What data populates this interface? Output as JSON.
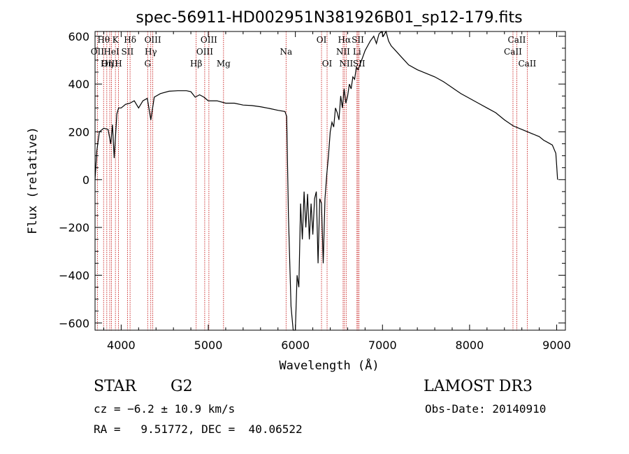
{
  "chart_data": {
    "type": "line",
    "title": "spec-56911-HD002951N381926B01_sp12-179.fits",
    "xlabel": "Wavelength (Å)",
    "ylabel": "Flux (relative)",
    "xlim": [
      3700,
      9100
    ],
    "ylim": [
      -630,
      620
    ],
    "xticks": [
      4000,
      5000,
      6000,
      7000,
      8000,
      9000
    ],
    "yticks": [
      -600,
      -400,
      -200,
      0,
      200,
      400,
      600
    ],
    "series": [
      {
        "name": "flux",
        "x": [
          3700,
          3720,
          3750,
          3800,
          3850,
          3880,
          3900,
          3920,
          3950,
          3970,
          4000,
          4050,
          4100,
          4150,
          4200,
          4250,
          4300,
          4340,
          4380,
          4450,
          4550,
          4650,
          4750,
          4800,
          4850,
          4900,
          4950,
          5000,
          5100,
          5200,
          5300,
          5400,
          5500,
          5600,
          5700,
          5800,
          5880,
          5900,
          5920,
          5950,
          5975,
          6000,
          6020,
          6040,
          6060,
          6080,
          6100,
          6120,
          6140,
          6160,
          6180,
          6200,
          6220,
          6240,
          6260,
          6280,
          6300,
          6320,
          6340,
          6360,
          6380,
          6400,
          6420,
          6440,
          6460,
          6480,
          6500,
          6520,
          6540,
          6560,
          6580,
          6600,
          6620,
          6640,
          6660,
          6680,
          6700,
          6720,
          6740,
          6760,
          6780,
          6800,
          6830,
          6860,
          6900,
          6930,
          6960,
          6990,
          7010,
          7040,
          7070,
          7100,
          7150,
          7200,
          7300,
          7400,
          7500,
          7600,
          7700,
          7800,
          7900,
          8000,
          8100,
          8200,
          8300,
          8400,
          8500,
          8600,
          8700,
          8800,
          8850,
          8900,
          8950,
          8990,
          9000,
          9010
        ],
        "y": [
          0,
          120,
          200,
          215,
          210,
          150,
          230,
          90,
          275,
          300,
          300,
          315,
          320,
          330,
          300,
          330,
          340,
          250,
          345,
          360,
          370,
          372,
          372,
          368,
          345,
          355,
          345,
          330,
          330,
          320,
          320,
          312,
          310,
          305,
          298,
          290,
          285,
          265,
          -150,
          -530,
          -630,
          -630,
          -400,
          -450,
          -100,
          -250,
          -50,
          -200,
          -60,
          -250,
          -100,
          -230,
          -80,
          -50,
          -350,
          -80,
          -100,
          -350,
          -80,
          20,
          100,
          200,
          240,
          220,
          300,
          280,
          250,
          350,
          300,
          380,
          320,
          350,
          400,
          380,
          430,
          420,
          470,
          460,
          480,
          500,
          520,
          540,
          560,
          580,
          600,
          570,
          610,
          620,
          600,
          620,
          580,
          560,
          540,
          520,
          480,
          460,
          445,
          430,
          410,
          385,
          360,
          340,
          320,
          300,
          280,
          250,
          225,
          210,
          195,
          180,
          165,
          155,
          145,
          110,
          60,
          0
        ],
        "color": "#000000"
      }
    ],
    "spectral_lines": [
      {
        "label": "Hθ",
        "wavelength": 3798,
        "row": 1
      },
      {
        "label": "OII",
        "wavelength": 3727,
        "row": 2
      },
      {
        "label": "OIII",
        "wavelength": 3869,
        "row": 3
      },
      {
        "label": "HeI",
        "wavelength": 3889,
        "row": 2
      },
      {
        "label": "Hη",
        "wavelength": 3835,
        "row": 3
      },
      {
        "label": "K",
        "wavelength": 3934,
        "row": 1
      },
      {
        "label": "SII",
        "wavelength": 4072,
        "row": 2
      },
      {
        "label": "H",
        "wavelength": 3969,
        "row": 3
      },
      {
        "label": "Hδ",
        "wavelength": 4102,
        "row": 1
      },
      {
        "label": "OIII",
        "wavelength": 4363,
        "row": 1
      },
      {
        "label": "Hγ",
        "wavelength": 4340,
        "row": 2
      },
      {
        "label": "G",
        "wavelength": 4304,
        "row": 3
      },
      {
        "label": "Hβ",
        "wavelength": 4861,
        "row": 3
      },
      {
        "label": "OIII",
        "wavelength": 5007,
        "row": 1
      },
      {
        "label": "OIII",
        "wavelength": 4959,
        "row": 2
      },
      {
        "label": "Mg",
        "wavelength": 5175,
        "row": 3
      },
      {
        "label": "Na",
        "wavelength": 5893,
        "row": 2
      },
      {
        "label": "OI",
        "wavelength": 6300,
        "row": 1
      },
      {
        "label": "OI",
        "wavelength": 6364,
        "row": 3
      },
      {
        "label": "Hα",
        "wavelength": 6563,
        "row": 1
      },
      {
        "label": "NII",
        "wavelength": 6548,
        "row": 2
      },
      {
        "label": "NII",
        "wavelength": 6583,
        "row": 3
      },
      {
        "label": "SII",
        "wavelength": 6717,
        "row": 1
      },
      {
        "label": "Li",
        "wavelength": 6707,
        "row": 2
      },
      {
        "label": "SII",
        "wavelength": 6731,
        "row": 3
      },
      {
        "label": "CaII",
        "wavelength": 8542,
        "row": 1
      },
      {
        "label": "CaII",
        "wavelength": 8498,
        "row": 2
      },
      {
        "label": "CaII",
        "wavelength": 8662,
        "row": 3
      }
    ]
  },
  "info": {
    "class": "STAR",
    "subclass": "G2",
    "survey": "LAMOST DR3",
    "cz": "cz = −6.2 ± 10.9 km/s",
    "obs_date": "Obs-Date: 20140910",
    "radec": "RA =   9.51772, DEC =  40.06522"
  }
}
